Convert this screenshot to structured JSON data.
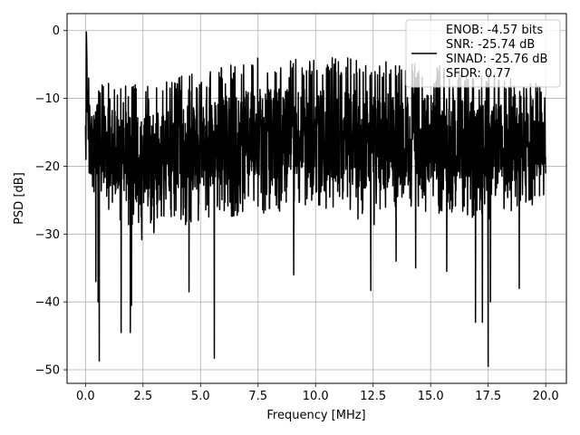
{
  "chart_data": {
    "type": "line",
    "title": "",
    "xlabel": "Frequency [MHz]",
    "ylabel": "PSD [dB]",
    "xlim": [
      -0.8,
      20.9
    ],
    "ylim": [
      -52.0,
      2.5
    ],
    "xticks": [
      0.0,
      2.5,
      5.0,
      7.5,
      10.0,
      12.5,
      15.0,
      17.5,
      20.0
    ],
    "xtick_labels": [
      "0.0",
      "2.5",
      "5.0",
      "7.5",
      "10.0",
      "12.5",
      "15.0",
      "17.5",
      "20.0"
    ],
    "yticks": [
      0,
      -10,
      -20,
      -30,
      -40,
      -50
    ],
    "ytick_labels": [
      "0",
      "−10",
      "−20",
      "−30",
      "−40",
      "−50"
    ],
    "grid": true,
    "legend_position": "top-right",
    "line_color": "#000000",
    "series": [
      {
        "name": "ENOB: -4.57 bits\nSNR: -25.74 dB\nSINAD: -25.76 dB\nSFDR: 0.77",
        "legend_lines": [
          "ENOB: -4.57 bits",
          "SNR: -25.74 dB",
          "SINAD: -25.76 dB",
          "SFDR: 0.77"
        ],
        "description": "dense noise spectrum, approx. 2000 points from 0 to 20 MHz; band mostly between -5 and -25 dB",
        "envelope": {
          "x": [
            0.0,
            2.5,
            5.0,
            7.5,
            10.0,
            12.5,
            15.0,
            17.5,
            20.0
          ],
          "upper": [
            -7,
            -8,
            -6,
            -4,
            -4,
            -4,
            -5,
            -6,
            -8
          ],
          "lower": [
            -24,
            -31,
            -28,
            -27,
            -26,
            -29,
            -27,
            -28,
            -25
          ]
        },
        "start_points": [
          [
            0.0,
            -14
          ],
          [
            0.02,
            -19
          ],
          [
            0.04,
            -0.2
          ],
          [
            0.06,
            -4
          ],
          [
            0.08,
            -12
          ],
          [
            0.1,
            -9
          ],
          [
            0.12,
            -16
          ],
          [
            0.14,
            -7
          ],
          [
            0.16,
            -21
          ],
          [
            0.18,
            -11
          ],
          [
            0.2,
            -15
          ]
        ],
        "notable_dips": [
          [
            0.45,
            -37
          ],
          [
            0.55,
            -40
          ],
          [
            0.6,
            -48.7
          ],
          [
            1.55,
            -44.5
          ],
          [
            1.95,
            -44.5
          ],
          [
            2.0,
            -40.5
          ],
          [
            4.5,
            -38.5
          ],
          [
            5.6,
            -48.3
          ],
          [
            9.05,
            -36
          ],
          [
            12.4,
            -38.3
          ],
          [
            13.5,
            -34
          ],
          [
            14.35,
            -35
          ],
          [
            15.7,
            -35.5
          ],
          [
            16.95,
            -43
          ],
          [
            17.25,
            -43
          ],
          [
            17.5,
            -49.5
          ],
          [
            17.6,
            -40
          ],
          [
            18.85,
            -38
          ]
        ]
      }
    ]
  }
}
